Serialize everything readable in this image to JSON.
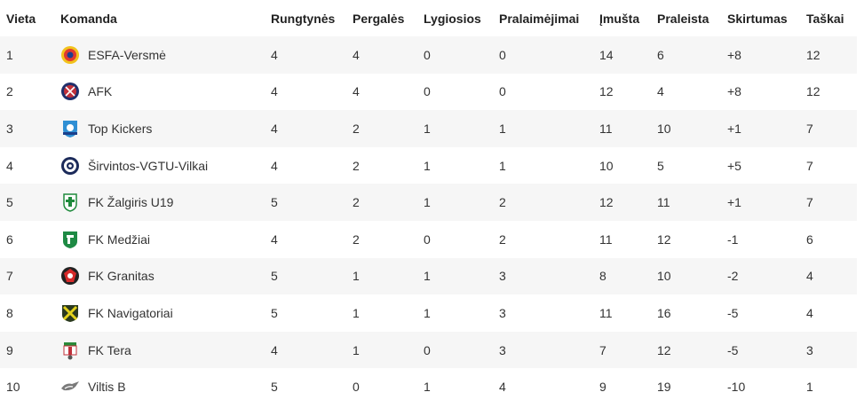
{
  "headers": {
    "place": "Vieta",
    "team": "Komanda",
    "played": "Rungtynės",
    "wins": "Pergalės",
    "draws": "Lygiosios",
    "losses": "Pralaimėjimai",
    "scored": "Įmušta",
    "conceded": "Praleista",
    "diff": "Skirtumas",
    "points": "Taškai"
  },
  "rows": [
    {
      "place": "1",
      "team": "ESFA-Versmė",
      "played": "4",
      "wins": "4",
      "draws": "0",
      "losses": "0",
      "scored": "14",
      "conceded": "6",
      "diff": "+8",
      "points": "12",
      "icon": "esfa-versme-logo-icon"
    },
    {
      "place": "2",
      "team": "AFK",
      "played": "4",
      "wins": "4",
      "draws": "0",
      "losses": "0",
      "scored": "12",
      "conceded": "4",
      "diff": "+8",
      "points": "12",
      "icon": "afk-logo-icon"
    },
    {
      "place": "3",
      "team": "Top Kickers",
      "played": "4",
      "wins": "2",
      "draws": "1",
      "losses": "1",
      "scored": "11",
      "conceded": "10",
      "diff": "+1",
      "points": "7",
      "icon": "top-kickers-logo-icon"
    },
    {
      "place": "4",
      "team": "Širvintos-VGTU-Vilkai",
      "played": "4",
      "wins": "2",
      "draws": "1",
      "losses": "1",
      "scored": "10",
      "conceded": "5",
      "diff": "+5",
      "points": "7",
      "icon": "sirvintos-vilkai-logo-icon"
    },
    {
      "place": "5",
      "team": "FK Žalgiris U19",
      "played": "5",
      "wins": "2",
      "draws": "1",
      "losses": "2",
      "scored": "12",
      "conceded": "11",
      "diff": "+1",
      "points": "7",
      "icon": "zalgiris-logo-icon"
    },
    {
      "place": "6",
      "team": "FK Medžiai",
      "played": "4",
      "wins": "2",
      "draws": "0",
      "losses": "2",
      "scored": "11",
      "conceded": "12",
      "diff": "-1",
      "points": "6",
      "icon": "medziai-logo-icon"
    },
    {
      "place": "7",
      "team": "FK Granitas",
      "played": "5",
      "wins": "1",
      "draws": "1",
      "losses": "3",
      "scored": "8",
      "conceded": "10",
      "diff": "-2",
      "points": "4",
      "icon": "granitas-logo-icon"
    },
    {
      "place": "8",
      "team": "FK Navigatoriai",
      "played": "5",
      "wins": "1",
      "draws": "1",
      "losses": "3",
      "scored": "11",
      "conceded": "16",
      "diff": "-5",
      "points": "4",
      "icon": "navigatoriai-logo-icon"
    },
    {
      "place": "9",
      "team": "FK Tera",
      "played": "4",
      "wins": "1",
      "draws": "0",
      "losses": "3",
      "scored": "7",
      "conceded": "12",
      "diff": "-5",
      "points": "3",
      "icon": "tera-logo-icon"
    },
    {
      "place": "10",
      "team": "Viltis B",
      "played": "5",
      "wins": "0",
      "draws": "1",
      "losses": "4",
      "scored": "9",
      "conceded": "19",
      "diff": "-10",
      "points": "1",
      "icon": "viltis-logo-icon"
    }
  ]
}
